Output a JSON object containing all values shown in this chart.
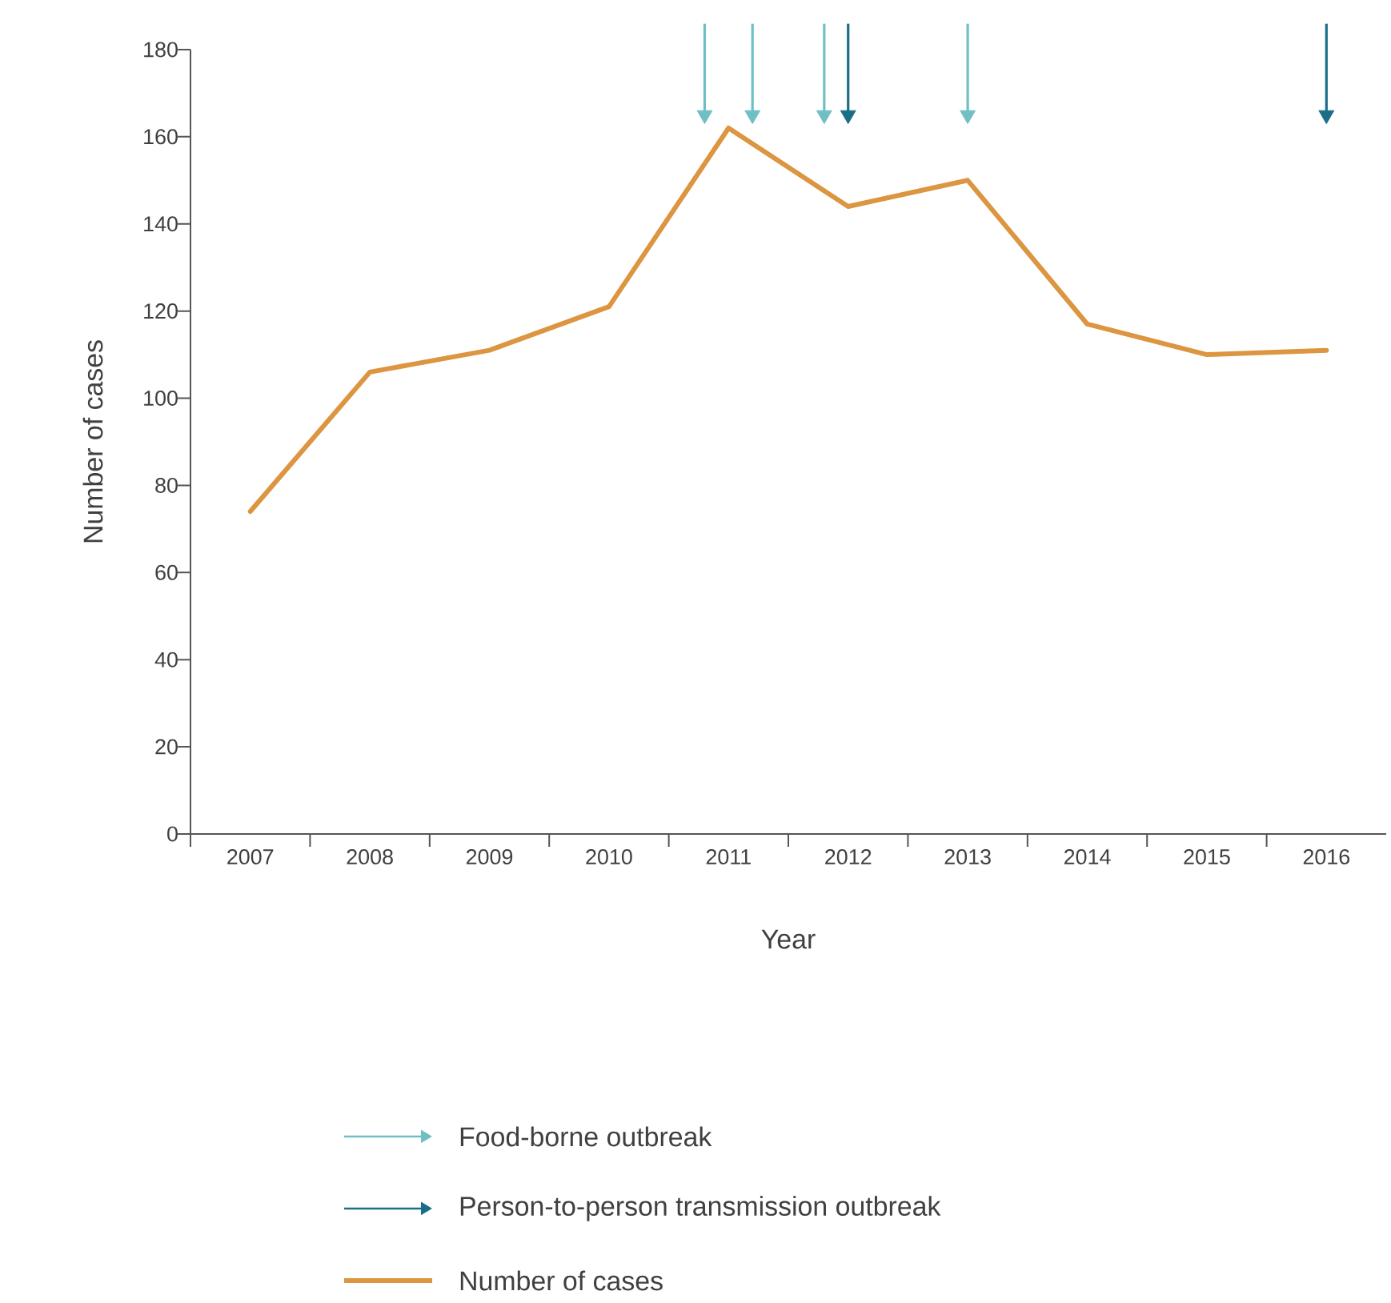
{
  "chart_data": {
    "type": "line",
    "xlabel": "Year",
    "ylabel": "Number of cases",
    "xlim": [
      2006.5,
      2016.5
    ],
    "ylim": [
      0,
      180
    ],
    "yticks": [
      0,
      20,
      40,
      60,
      80,
      100,
      120,
      140,
      160,
      180
    ],
    "xticks": [
      2007,
      2008,
      2009,
      2010,
      2011,
      2012,
      2013,
      2014,
      2015,
      2016,
      {
        "value": 2006.5,
        "label": null
      },
      {
        "value": 2007.5,
        "label": null
      },
      {
        "value": 2008.5,
        "label": null
      },
      {
        "value": 2009.5,
        "label": null
      },
      {
        "value": 2010.5,
        "label": null
      },
      {
        "value": 2011.5,
        "label": null
      },
      {
        "value": 2012.5,
        "label": null
      },
      {
        "value": 2013.5,
        "label": null
      },
      {
        "value": 2014.5,
        "label": null
      },
      {
        "value": 2015.5,
        "label": null
      }
    ],
    "grid": false,
    "legend": "bottom",
    "series": [
      {
        "name": "Food-borne outbreak",
        "type": "scatter",
        "marker": "triangle",
        "color": "#6fbfc4",
        "x": [
          2010.8,
          2011.2,
          2011.8,
          2013.0
        ],
        "values": [
          165,
          165,
          165,
          165
        ]
      },
      {
        "name": "Person-to-person transmission outbreak",
        "type": "scatter",
        "marker": "triangle",
        "color": "#1a6e86",
        "x": [
          2012.0,
          2016.0
        ],
        "values": [
          165,
          165
        ]
      },
      {
        "name": "Number of cases",
        "color": "#dc9540",
        "x": [
          2007,
          2008,
          2009,
          2010,
          2011,
          2012,
          2013,
          2014,
          2015,
          2016
        ],
        "values": [
          74,
          106,
          111,
          121,
          162,
          144,
          150,
          117,
          110,
          111
        ]
      }
    ]
  }
}
